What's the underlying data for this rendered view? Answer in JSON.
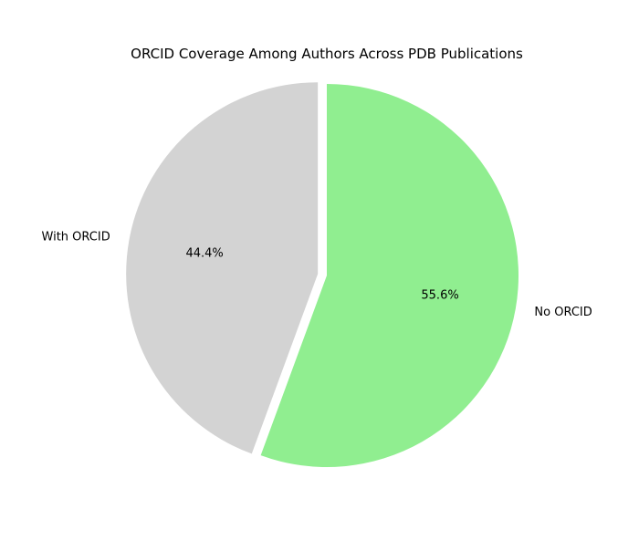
{
  "chart_data": {
    "type": "pie",
    "title": "ORCID Coverage Among Authors Across PDB Publications",
    "slices": [
      {
        "label": "No ORCID",
        "value": 55.6,
        "pct_label": "55.6%",
        "color": "#90ee90",
        "exploded": false
      },
      {
        "label": "With ORCID",
        "value": 44.4,
        "pct_label": "44.4%",
        "color": "#d3d3d3",
        "exploded": true
      }
    ],
    "start_angle_deg": 90,
    "direction": "clockwise",
    "legend": "none"
  }
}
